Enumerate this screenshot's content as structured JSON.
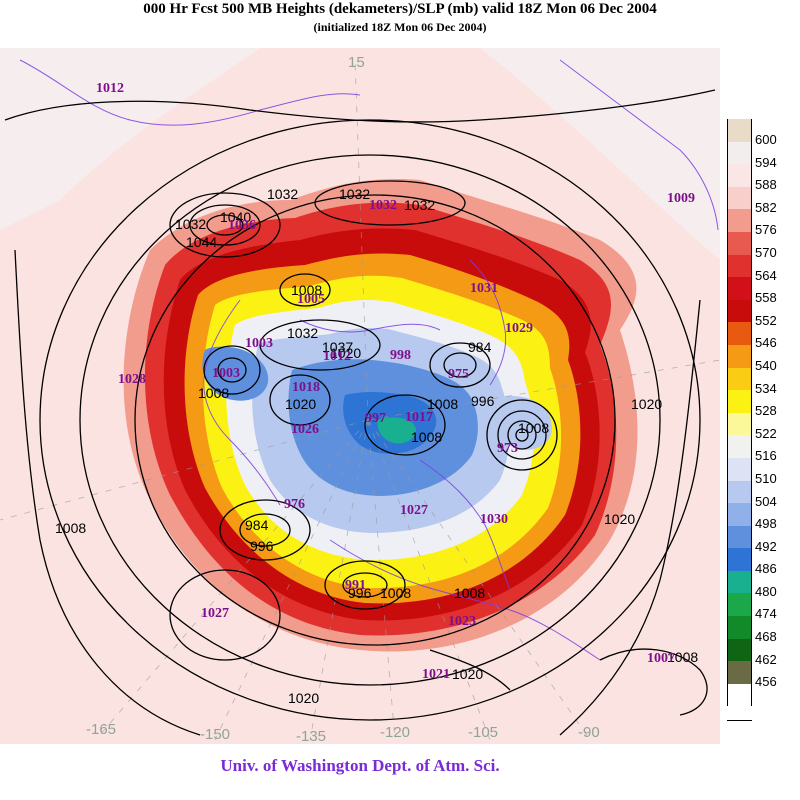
{
  "title": "000 Hr Fcst 500 MB Heights (dekameters)/SLP (mb) valid 18Z Mon 06 Dec 2004",
  "subtitle": "(initialized 18Z Mon 06 Dec 2004)",
  "credit": "Univ. of Washington Dept. of Atm. Sci.",
  "legend": [
    {
      "label": "600",
      "color": "#e8dcc8"
    },
    {
      "label": "594",
      "color": "#f2eeee"
    },
    {
      "label": "588",
      "color": "#fbe6e6"
    },
    {
      "label": "582",
      "color": "#f9cfcb"
    },
    {
      "label": "576",
      "color": "#f29c8e"
    },
    {
      "label": "570",
      "color": "#e85a4f"
    },
    {
      "label": "564",
      "color": "#e0312e"
    },
    {
      "label": "558",
      "color": "#d1101a"
    },
    {
      "label": "552",
      "color": "#c80c0c"
    },
    {
      "label": "546",
      "color": "#e85a10"
    },
    {
      "label": "540",
      "color": "#f59a14"
    },
    {
      "label": "534",
      "color": "#fbcc14"
    },
    {
      "label": "528",
      "color": "#fbf214"
    },
    {
      "label": "522",
      "color": "#fbf89a"
    },
    {
      "label": "516",
      "color": "#f1f1ef"
    },
    {
      "label": "510",
      "color": "#dde3f5"
    },
    {
      "label": "504",
      "color": "#b7c9ee"
    },
    {
      "label": "498",
      "color": "#8fb0e8"
    },
    {
      "label": "492",
      "color": "#5f90dd"
    },
    {
      "label": "486",
      "color": "#2e74d4"
    },
    {
      "label": "480",
      "color": "#18b08f"
    },
    {
      "label": "474",
      "color": "#1aa84a"
    },
    {
      "label": "468",
      "color": "#138a2a"
    },
    {
      "label": "462",
      "color": "#0f6514"
    },
    {
      "label": "456",
      "color": "#6a6a45"
    },
    {
      "label": "",
      "color": "#ffffff"
    }
  ],
  "map": {
    "longitude_labels": [
      "15",
      "-165",
      "-150",
      "-135",
      "-120",
      "-105",
      "-90"
    ],
    "slp_contour_labels": [
      "1032",
      "1032",
      "1032",
      "1032",
      "1040",
      "1044",
      "1008",
      "1032",
      "1037",
      "1008",
      "1020",
      "984",
      "1008",
      "996",
      "1008",
      "1008",
      "1020",
      "1020",
      "1008",
      "1020",
      "1020",
      "984",
      "996",
      "996",
      "1008",
      "1008",
      "1020",
      "1008"
    ],
    "pressure_center_labels": [
      "1012",
      "1009",
      "1036",
      "1032",
      "1031",
      "1005",
      "1029",
      "1003",
      "1012",
      "998",
      "975",
      "1028",
      "1003",
      "1018",
      "1026",
      "997",
      "1017",
      "973",
      "1027",
      "1030",
      "976",
      "991",
      "1027",
      "1023",
      "1021",
      "1007"
    ]
  }
}
